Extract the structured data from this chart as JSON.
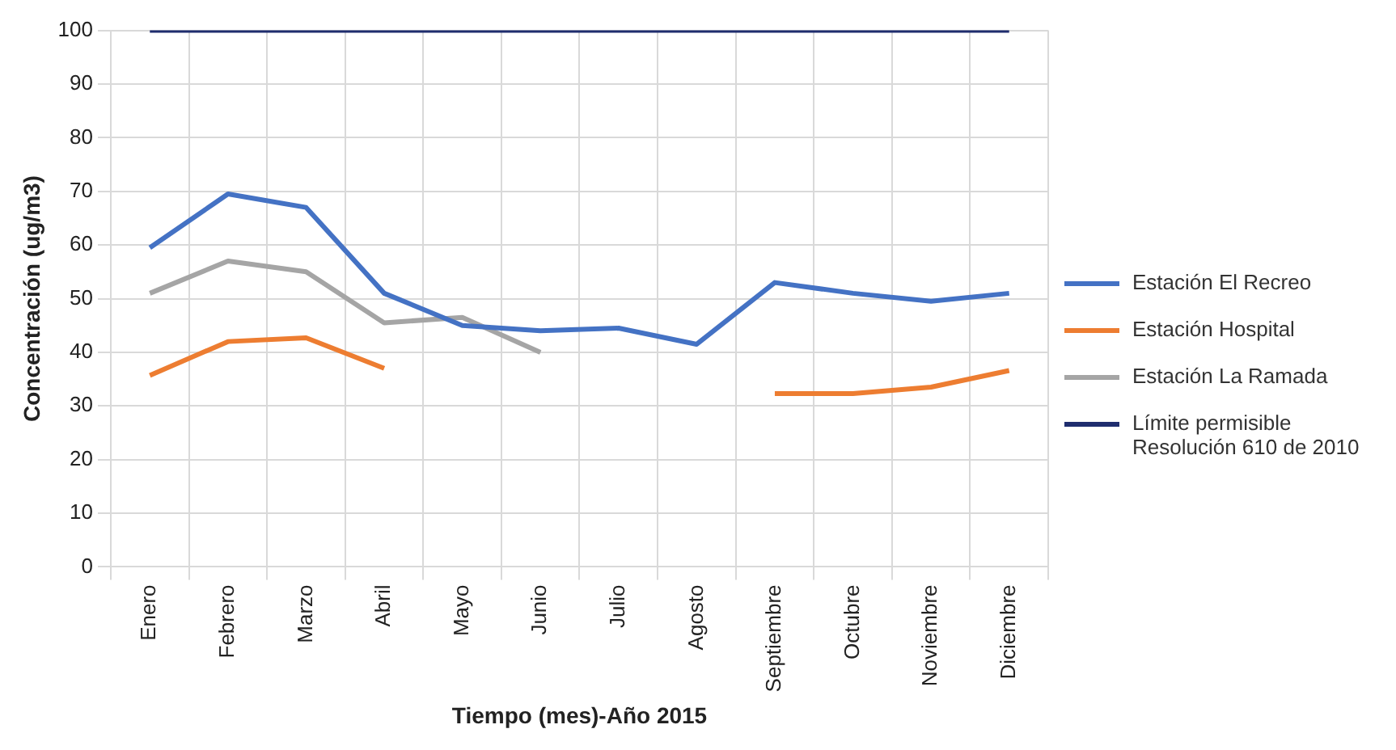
{
  "chart_data": {
    "type": "line",
    "xlabel": "Tiempo (mes)-Año 2015",
    "ylabel": "Concentración (ug/m3)",
    "categories": [
      "Enero",
      "Febrero",
      "Marzo",
      "Abril",
      "Mayo",
      "Junio",
      "Julio",
      "Agosto",
      "Septiembre",
      "Octubre",
      "Noviembre",
      "Diciembre"
    ],
    "series": [
      {
        "name": "Estación El Recreo",
        "color": "#4472c4",
        "values": [
          59.5,
          69.5,
          67,
          51,
          45,
          44,
          44.5,
          41.5,
          53,
          51,
          49.5,
          51
        ]
      },
      {
        "name": "Estación Hospital",
        "color": "#ed7d31",
        "values": [
          35.7,
          42,
          42.7,
          37,
          null,
          null,
          null,
          null,
          32.3,
          32.3,
          33.5,
          36.6
        ]
      },
      {
        "name": "Estación La Ramada",
        "color": "#a5a5a5",
        "values": [
          51,
          57,
          55,
          45.5,
          46.5,
          40,
          null,
          null,
          null,
          null,
          null,
          null
        ]
      },
      {
        "name": "Límite permisible Resolución 610 de 2010",
        "color": "#1f2d6e",
        "values": [
          100,
          100,
          100,
          100,
          100,
          100,
          100,
          100,
          100,
          100,
          100,
          100
        ]
      }
    ],
    "ylim": [
      0,
      100
    ],
    "yticks": [
      0,
      10,
      20,
      30,
      40,
      50,
      60,
      70,
      80,
      90,
      100
    ],
    "grid": true,
    "legend": "right",
    "marker": "none",
    "line_style": "solid"
  }
}
